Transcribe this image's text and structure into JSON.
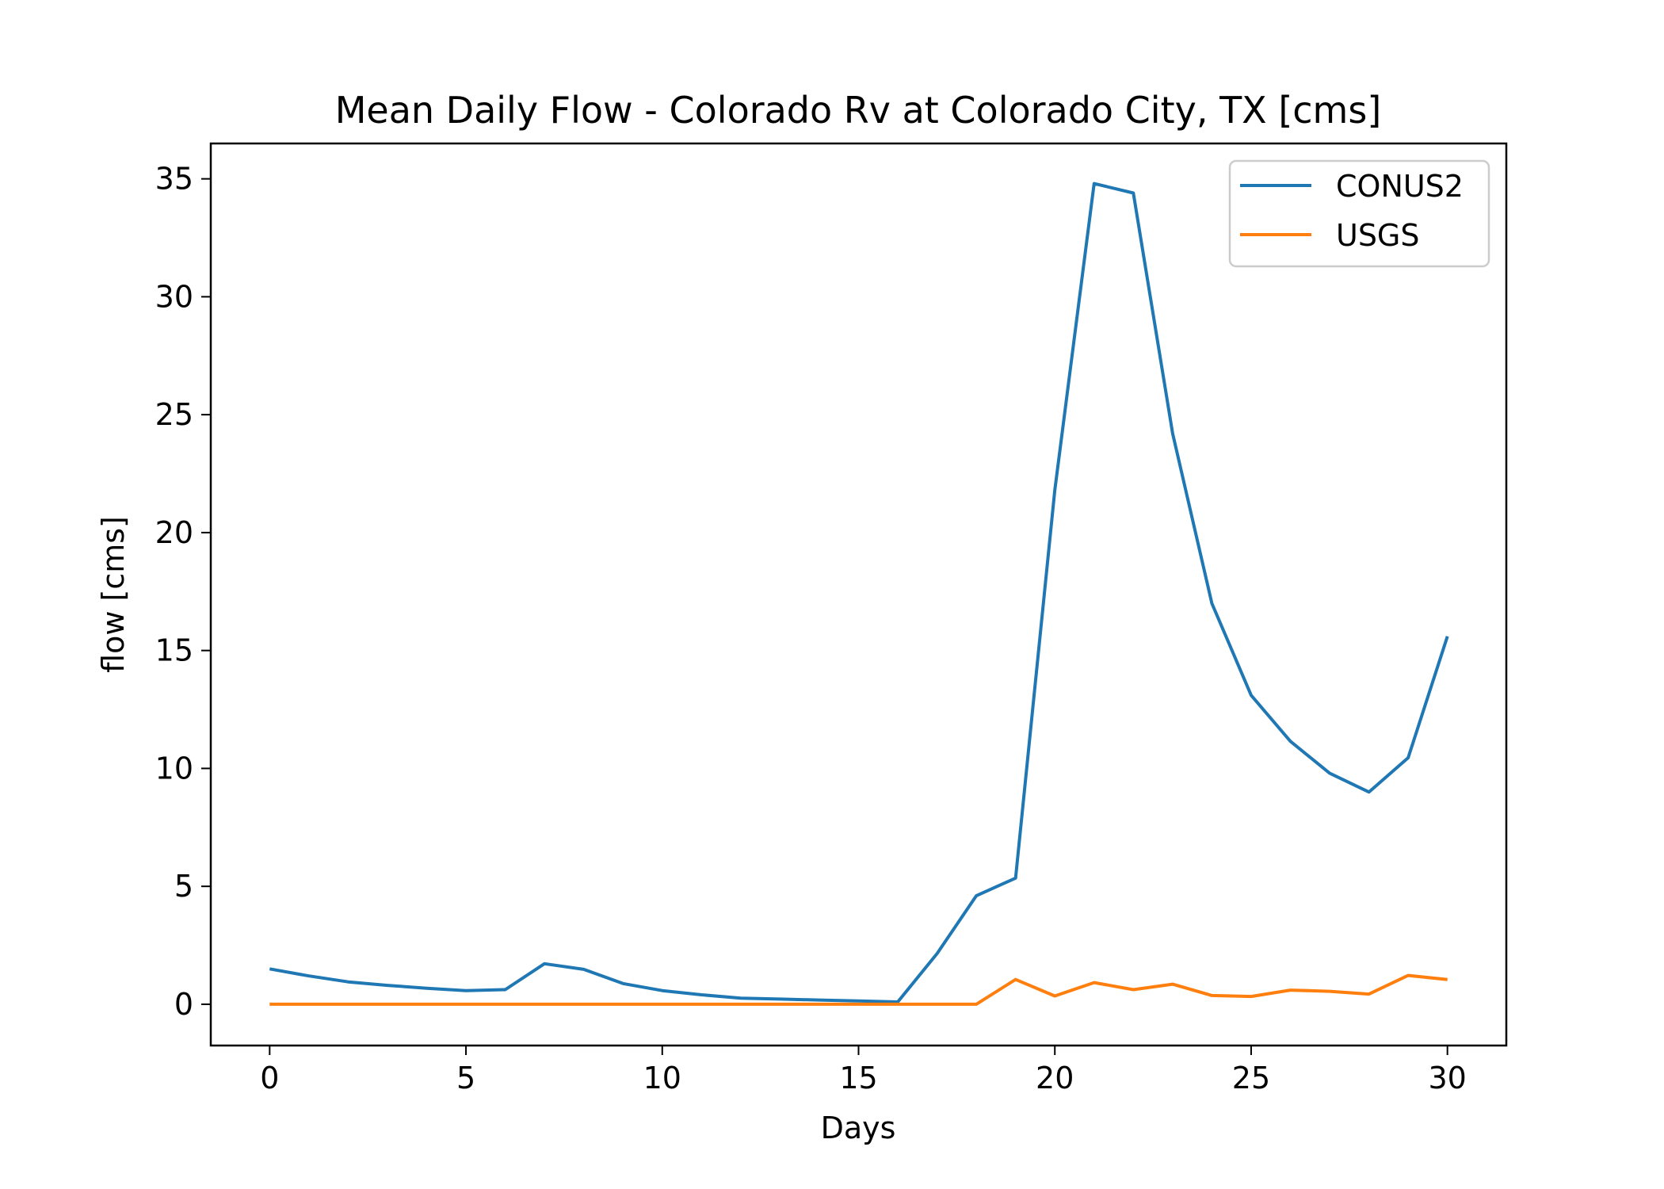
{
  "chart_data": {
    "type": "line",
    "title": "Mean Daily Flow - Colorado Rv at Colorado City, TX [cms]",
    "xlabel": "Days",
    "ylabel": "flow [cms]",
    "xlim": [
      -1.5,
      31.5
    ],
    "ylim": [
      -1.75,
      36.5
    ],
    "xticks": [
      0,
      5,
      10,
      15,
      20,
      25,
      30
    ],
    "yticks": [
      0,
      5,
      10,
      15,
      20,
      25,
      30,
      35
    ],
    "grid": false,
    "legend_position": "top-right",
    "x": [
      0,
      1,
      2,
      3,
      4,
      5,
      6,
      7,
      8,
      9,
      10,
      11,
      12,
      13,
      14,
      15,
      16,
      17,
      18,
      19,
      20,
      21,
      22,
      23,
      24,
      25,
      26,
      27,
      28,
      29,
      30
    ],
    "series": [
      {
        "name": "CONUS2",
        "color": "#1f77b4",
        "values": [
          1.5,
          1.2,
          0.95,
          0.8,
          0.68,
          0.58,
          0.62,
          1.72,
          1.48,
          0.88,
          0.58,
          0.4,
          0.26,
          0.22,
          0.18,
          0.14,
          0.1,
          2.15,
          4.6,
          5.35,
          21.8,
          34.8,
          34.4,
          24.2,
          17.0,
          13.1,
          11.15,
          9.8,
          9.0,
          10.45,
          15.6
        ]
      },
      {
        "name": "USGS",
        "color": "#ff7f0e",
        "values": [
          0,
          0,
          0,
          0,
          0,
          0,
          0,
          0,
          0,
          0,
          0,
          0,
          0,
          0,
          0,
          0,
          0,
          0,
          0,
          1.05,
          0.35,
          0.92,
          0.62,
          0.85,
          0.37,
          0.33,
          0.6,
          0.55,
          0.43,
          1.22,
          1.05
        ]
      }
    ]
  }
}
